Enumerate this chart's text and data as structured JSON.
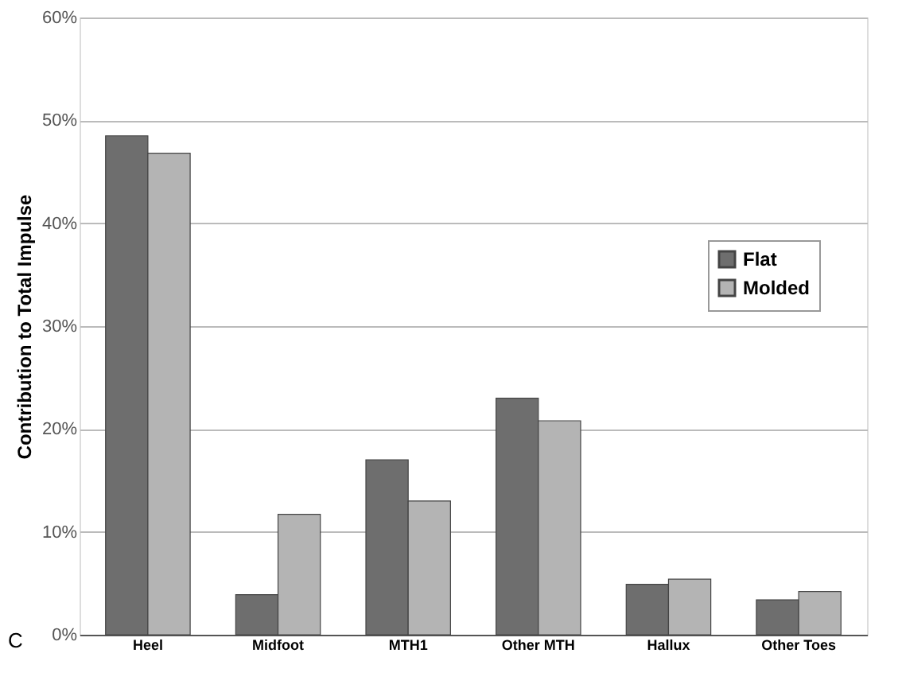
{
  "chart_data": {
    "type": "bar",
    "ylabel": "Contribution to Total Impulse",
    "categories": [
      "Heel",
      "Midfoot",
      "MTH1",
      "Other MTH",
      "Hallux",
      "Other Toes"
    ],
    "series": [
      {
        "name": "Flat",
        "color": "#6e6e6e",
        "values": [
          48.5,
          3.9,
          17.0,
          23.0,
          4.9,
          3.4
        ]
      },
      {
        "name": "Molded",
        "color": "#b4b4b4",
        "values": [
          46.8,
          11.7,
          13.0,
          20.8,
          5.4,
          4.2
        ]
      }
    ],
    "ylim": [
      0,
      60
    ],
    "yticks": [
      {
        "value": 0,
        "label": "0%"
      },
      {
        "value": 10,
        "label": "10%"
      },
      {
        "value": 20,
        "label": "20%"
      },
      {
        "value": 30,
        "label": "30%"
      },
      {
        "value": 40,
        "label": "40%"
      },
      {
        "value": 50,
        "label": "50%"
      },
      {
        "value": 60,
        "label": "60%"
      }
    ],
    "grid": "y",
    "legend": "right",
    "annotations": [
      "C"
    ]
  }
}
